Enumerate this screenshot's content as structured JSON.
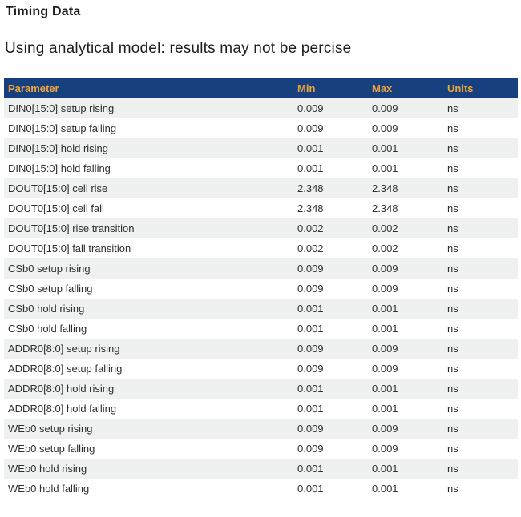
{
  "page": {
    "title": "Timing Data",
    "subtitle": "Using analytical model: results may not be percise"
  },
  "colors": {
    "header_background": "#17417e",
    "header_text": "#f0a33c",
    "row_stripe": "#eff1f1",
    "body_text": "#2e2e2e"
  },
  "table": {
    "columns": [
      "Parameter",
      "Min",
      "Max",
      "Units"
    ],
    "rows": [
      {
        "param": "DIN0[15:0] setup rising",
        "min": "0.009",
        "max": "0.009",
        "units": "ns"
      },
      {
        "param": "DIN0[15:0] setup falling",
        "min": "0.009",
        "max": "0.009",
        "units": "ns"
      },
      {
        "param": "DIN0[15:0] hold rising",
        "min": "0.001",
        "max": "0.001",
        "units": "ns"
      },
      {
        "param": "DIN0[15:0] hold falling",
        "min": "0.001",
        "max": "0.001",
        "units": "ns"
      },
      {
        "param": "DOUT0[15:0] cell rise",
        "min": "2.348",
        "max": "2.348",
        "units": "ns"
      },
      {
        "param": "DOUT0[15:0] cell fall",
        "min": "2.348",
        "max": "2.348",
        "units": "ns"
      },
      {
        "param": "DOUT0[15:0] rise transition",
        "min": "0.002",
        "max": "0.002",
        "units": "ns"
      },
      {
        "param": "DOUT0[15:0] fall transition",
        "min": "0.002",
        "max": "0.002",
        "units": "ns"
      },
      {
        "param": "CSb0 setup rising",
        "min": "0.009",
        "max": "0.009",
        "units": "ns"
      },
      {
        "param": "CSb0 setup falling",
        "min": "0.009",
        "max": "0.009",
        "units": "ns"
      },
      {
        "param": "CSb0 hold rising",
        "min": "0.001",
        "max": "0.001",
        "units": "ns"
      },
      {
        "param": "CSb0 hold falling",
        "min": "0.001",
        "max": "0.001",
        "units": "ns"
      },
      {
        "param": "ADDR0[8:0] setup rising",
        "min": "0.009",
        "max": "0.009",
        "units": "ns"
      },
      {
        "param": "ADDR0[8:0] setup falling",
        "min": "0.009",
        "max": "0.009",
        "units": "ns"
      },
      {
        "param": "ADDR0[8:0] hold rising",
        "min": "0.001",
        "max": "0.001",
        "units": "ns"
      },
      {
        "param": "ADDR0[8:0] hold falling",
        "min": "0.001",
        "max": "0.001",
        "units": "ns"
      },
      {
        "param": "WEb0 setup rising",
        "min": "0.009",
        "max": "0.009",
        "units": "ns"
      },
      {
        "param": "WEb0 setup falling",
        "min": "0.009",
        "max": "0.009",
        "units": "ns"
      },
      {
        "param": "WEb0 hold rising",
        "min": "0.001",
        "max": "0.001",
        "units": "ns"
      },
      {
        "param": "WEb0 hold falling",
        "min": "0.001",
        "max": "0.001",
        "units": "ns"
      }
    ]
  }
}
